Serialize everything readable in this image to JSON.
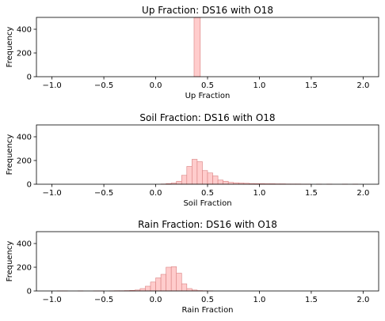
{
  "chart_data": [
    {
      "type": "bar",
      "title": "Up Fraction: DS16 with O18",
      "xlabel": "Up Fraction",
      "ylabel": "Frequency",
      "xlim": [
        -1.15,
        2.15
      ],
      "ylim": [
        0,
        500
      ],
      "xticks": [
        "−1.0",
        "−0.5",
        "0.0",
        "0.5",
        "1.0",
        "1.5",
        "2.0"
      ],
      "yticks": [
        "0",
        "200",
        "400"
      ],
      "bar_color": "#ffcccc",
      "edge_color": "#d98080",
      "bins": [
        {
          "x0": 0.37,
          "x1": 0.43,
          "count": 500
        }
      ]
    },
    {
      "type": "bar",
      "title": "Soil Fraction: DS16 with O18",
      "xlabel": "Soil Fraction",
      "ylabel": "Frequency",
      "xlim": [
        -1.15,
        2.15
      ],
      "ylim": [
        0,
        500
      ],
      "xticks": [
        "−1.0",
        "−0.5",
        "0.0",
        "0.5",
        "1.0",
        "1.5",
        "2.0"
      ],
      "yticks": [
        "0",
        "200",
        "400"
      ],
      "bar_color": "#ffcccc",
      "edge_color": "#d98080",
      "bins": [
        {
          "x0": 0.05,
          "x1": 0.1,
          "count": 2
        },
        {
          "x0": 0.1,
          "x1": 0.15,
          "count": 5
        },
        {
          "x0": 0.15,
          "x1": 0.2,
          "count": 10
        },
        {
          "x0": 0.2,
          "x1": 0.25,
          "count": 25
        },
        {
          "x0": 0.25,
          "x1": 0.3,
          "count": 75
        },
        {
          "x0": 0.3,
          "x1": 0.35,
          "count": 150
        },
        {
          "x0": 0.35,
          "x1": 0.4,
          "count": 210
        },
        {
          "x0": 0.4,
          "x1": 0.45,
          "count": 190
        },
        {
          "x0": 0.45,
          "x1": 0.5,
          "count": 115
        },
        {
          "x0": 0.5,
          "x1": 0.55,
          "count": 95
        },
        {
          "x0": 0.55,
          "x1": 0.6,
          "count": 70
        },
        {
          "x0": 0.6,
          "x1": 0.65,
          "count": 35
        },
        {
          "x0": 0.65,
          "x1": 0.7,
          "count": 25
        },
        {
          "x0": 0.7,
          "x1": 0.75,
          "count": 15
        },
        {
          "x0": 0.75,
          "x1": 0.8,
          "count": 12
        },
        {
          "x0": 0.8,
          "x1": 0.85,
          "count": 10
        },
        {
          "x0": 0.85,
          "x1": 0.9,
          "count": 8
        },
        {
          "x0": 0.9,
          "x1": 0.95,
          "count": 6
        },
        {
          "x0": 0.95,
          "x1": 1.0,
          "count": 5
        },
        {
          "x0": 1.0,
          "x1": 1.05,
          "count": 5
        },
        {
          "x0": 1.05,
          "x1": 1.1,
          "count": 4
        },
        {
          "x0": 1.1,
          "x1": 1.15,
          "count": 4
        },
        {
          "x0": 1.15,
          "x1": 1.2,
          "count": 3
        },
        {
          "x0": 1.2,
          "x1": 1.25,
          "count": 3
        },
        {
          "x0": 1.25,
          "x1": 1.3,
          "count": 2
        },
        {
          "x0": 1.3,
          "x1": 1.35,
          "count": 2
        },
        {
          "x0": 1.35,
          "x1": 1.4,
          "count": 2
        },
        {
          "x0": 1.4,
          "x1": 1.45,
          "count": 1
        },
        {
          "x0": 1.45,
          "x1": 1.5,
          "count": 1
        },
        {
          "x0": 1.55,
          "x1": 1.6,
          "count": 1
        },
        {
          "x0": 1.65,
          "x1": 1.7,
          "count": 1
        },
        {
          "x0": 1.8,
          "x1": 1.85,
          "count": 1
        },
        {
          "x0": 1.9,
          "x1": 1.95,
          "count": 1
        }
      ]
    },
    {
      "type": "bar",
      "title": "Rain Fraction: DS16 with O18",
      "xlabel": "Rain Fraction",
      "ylabel": "Frequency",
      "xlim": [
        -1.15,
        2.15
      ],
      "ylim": [
        0,
        500
      ],
      "xticks": [
        "−1.0",
        "−0.5",
        "0.0",
        "0.5",
        "1.0",
        "1.5",
        "2.0"
      ],
      "yticks": [
        "0",
        "200",
        "400"
      ],
      "bar_color": "#ffcccc",
      "edge_color": "#d98080",
      "bins": [
        {
          "x0": -0.95,
          "x1": -0.9,
          "count": 1
        },
        {
          "x0": -0.9,
          "x1": -0.85,
          "count": 1
        },
        {
          "x0": -0.75,
          "x1": -0.7,
          "count": 1
        },
        {
          "x0": -0.6,
          "x1": -0.55,
          "count": 1
        },
        {
          "x0": -0.55,
          "x1": -0.5,
          "count": 1
        },
        {
          "x0": -0.45,
          "x1": -0.4,
          "count": 1
        },
        {
          "x0": -0.4,
          "x1": -0.35,
          "count": 2
        },
        {
          "x0": -0.35,
          "x1": -0.3,
          "count": 2
        },
        {
          "x0": -0.3,
          "x1": -0.25,
          "count": 3
        },
        {
          "x0": -0.25,
          "x1": -0.2,
          "count": 5
        },
        {
          "x0": -0.2,
          "x1": -0.15,
          "count": 8
        },
        {
          "x0": -0.15,
          "x1": -0.1,
          "count": 20
        },
        {
          "x0": -0.1,
          "x1": -0.05,
          "count": 40
        },
        {
          "x0": -0.05,
          "x1": 0.0,
          "count": 75
        },
        {
          "x0": 0.0,
          "x1": 0.05,
          "count": 110
        },
        {
          "x0": 0.05,
          "x1": 0.1,
          "count": 140
        },
        {
          "x0": 0.1,
          "x1": 0.15,
          "count": 200
        },
        {
          "x0": 0.15,
          "x1": 0.2,
          "count": 205
        },
        {
          "x0": 0.2,
          "x1": 0.25,
          "count": 150
        },
        {
          "x0": 0.25,
          "x1": 0.3,
          "count": 60
        },
        {
          "x0": 0.3,
          "x1": 0.35,
          "count": 20
        },
        {
          "x0": 0.35,
          "x1": 0.4,
          "count": 8
        },
        {
          "x0": 0.4,
          "x1": 0.45,
          "count": 3
        },
        {
          "x0": 0.45,
          "x1": 0.5,
          "count": 2
        },
        {
          "x0": 0.5,
          "x1": 0.55,
          "count": 1
        }
      ]
    }
  ]
}
